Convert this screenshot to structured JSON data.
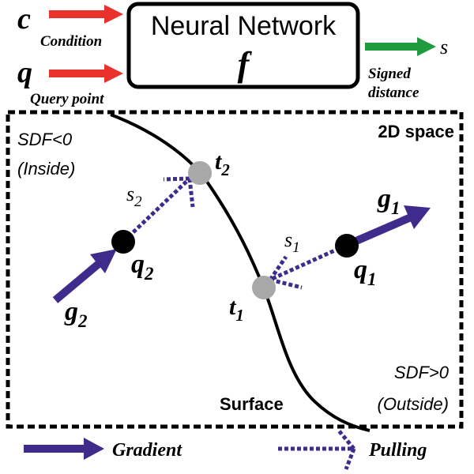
{
  "inputs": {
    "c_symbol": "c",
    "c_label": "Condition",
    "q_symbol": "q",
    "q_label": "Query point"
  },
  "network": {
    "title": "Neural Network",
    "function_symbol": "f"
  },
  "output": {
    "s_symbol": "s",
    "label_line1": "Signed",
    "label_line2": "distance"
  },
  "space": {
    "title": "2D space",
    "inside_line1": "SDF<0",
    "inside_line2": "(Inside)",
    "outside_line1": "SDF>0",
    "outside_line2": "(Outside)",
    "surface_label": "Surface"
  },
  "points": {
    "q1": {
      "base": "q",
      "sub": "1"
    },
    "q2": {
      "base": "q",
      "sub": "2"
    },
    "t1": {
      "base": "t",
      "sub": "1"
    },
    "t2": {
      "base": "t",
      "sub": "2"
    },
    "g1": {
      "base": "g",
      "sub": "1"
    },
    "g2": {
      "base": "g",
      "sub": "2"
    },
    "s1": {
      "base": "s",
      "sub": "1"
    },
    "s2": {
      "base": "s",
      "sub": "2"
    }
  },
  "legend": {
    "gradient_label": "Gradient",
    "pulling_label": "Pulling"
  },
  "colors": {
    "condition_arrow": "#e8322b",
    "output_arrow": "#1f9a3d",
    "gradient": "#3f2b8c",
    "pulling": "#3f2b8c",
    "surface_point": "#a8a8a8",
    "query_point": "#000000"
  }
}
